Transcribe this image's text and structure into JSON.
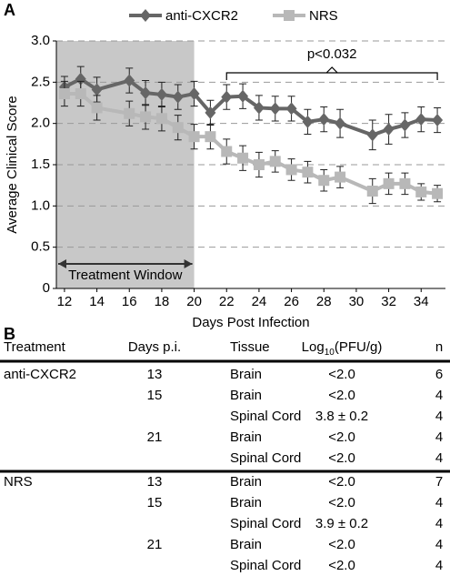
{
  "panel_labels": [
    "A",
    "B"
  ],
  "chart_data": {
    "type": "line",
    "ylabel": "Average Clinical Score",
    "xlabel": "Days Post Infection",
    "x": [
      12,
      13,
      14,
      16,
      17,
      18,
      19,
      20,
      21,
      22,
      23,
      24,
      25,
      26,
      27,
      28,
      29,
      31,
      32,
      33,
      34,
      35
    ],
    "series": [
      {
        "name": "anti-CXCR2",
        "color": "#666666",
        "marker": "diamond",
        "values": [
          2.44,
          2.54,
          2.41,
          2.52,
          2.37,
          2.35,
          2.32,
          2.36,
          2.13,
          2.32,
          2.33,
          2.19,
          2.18,
          2.18,
          2.02,
          2.05,
          2.0,
          1.86,
          1.93,
          1.98,
          2.05,
          2.04
        ],
        "errors": [
          0.13,
          0.15,
          0.15,
          0.15,
          0.15,
          0.15,
          0.15,
          0.15,
          0.15,
          0.15,
          0.15,
          0.15,
          0.15,
          0.15,
          0.15,
          0.15,
          0.17,
          0.18,
          0.18,
          0.15,
          0.15,
          0.15
        ]
      },
      {
        "name": "NRS",
        "color": "#b8b8b8",
        "marker": "square",
        "values": [
          2.36,
          2.36,
          2.19,
          2.12,
          2.08,
          2.06,
          1.95,
          1.84,
          1.84,
          1.66,
          1.58,
          1.5,
          1.54,
          1.44,
          1.41,
          1.31,
          1.35,
          1.18,
          1.27,
          1.27,
          1.17,
          1.15
        ],
        "errors": [
          0.15,
          0.15,
          0.15,
          0.15,
          0.15,
          0.15,
          0.15,
          0.15,
          0.15,
          0.15,
          0.15,
          0.15,
          0.13,
          0.13,
          0.13,
          0.13,
          0.13,
          0.15,
          0.13,
          0.13,
          0.1,
          0.1
        ]
      }
    ],
    "xlim": [
      11.5,
      35.5
    ],
    "xticks": [
      12,
      14,
      16,
      18,
      20,
      22,
      24,
      26,
      28,
      30,
      32,
      34
    ],
    "ylim": [
      0,
      3
    ],
    "yticks": [
      0,
      {
        "value": 0.5,
        "label": "0.5"
      },
      {
        "value": 1,
        "label": "1.0"
      },
      {
        "value": 1.5,
        "label": "1.5"
      },
      {
        "value": 2,
        "label": "2.0"
      },
      {
        "value": 2.5,
        "label": "2.5"
      },
      {
        "value": 3,
        "label": "3.0"
      }
    ],
    "grid": true,
    "legend": "top",
    "shaded_region": {
      "label": "Treatment Window",
      "x": [
        11.5,
        20
      ]
    },
    "annotation": {
      "text": "p<0.032",
      "x": [
        22,
        35
      ]
    }
  },
  "table": {
    "headers": [
      "Treatment",
      "Days p.i.",
      "Tissue",
      {
        "text": "Log",
        "sub": "10",
        "tail": "(PFU/g)"
      },
      "n"
    ],
    "groups": [
      {
        "treatment": "anti-CXCR2",
        "days": [
          {
            "day": "13",
            "rows": [
              {
                "tissue": "Brain",
                "titer": "<2.0",
                "n": "6"
              }
            ]
          },
          {
            "day": "15",
            "rows": [
              {
                "tissue": "Brain",
                "titer": "<2.0",
                "n": "4"
              },
              {
                "tissue": "Spinal Cord",
                "titer": "3.8 ± 0.2",
                "n": "4"
              }
            ]
          },
          {
            "day": "21",
            "rows": [
              {
                "tissue": "Brain",
                "titer": "<2.0",
                "n": "4"
              },
              {
                "tissue": "Spinal Cord",
                "titer": "<2.0",
                "n": "4"
              }
            ]
          }
        ]
      },
      {
        "treatment": "NRS",
        "days": [
          {
            "day": "13",
            "rows": [
              {
                "tissue": "Brain",
                "titer": "<2.0",
                "n": "7"
              }
            ]
          },
          {
            "day": "15",
            "rows": [
              {
                "tissue": "Brain",
                "titer": "<2.0",
                "n": "4"
              },
              {
                "tissue": "Spinal Cord",
                "titer": "3.9 ± 0.2",
                "n": "4"
              }
            ]
          },
          {
            "day": "21",
            "rows": [
              {
                "tissue": "Brain",
                "titer": "<2.0",
                "n": "4"
              },
              {
                "tissue": "Spinal Cord",
                "titer": "<2.0",
                "n": "4"
              }
            ]
          }
        ]
      }
    ]
  }
}
